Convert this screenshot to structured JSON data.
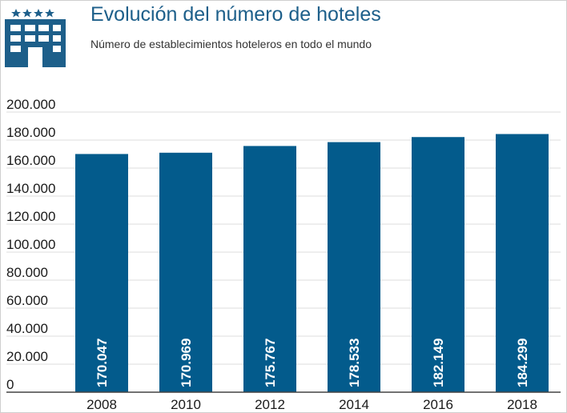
{
  "header": {
    "title": "Evolución del número de hoteles",
    "subtitle": "Número de establecimientos hoteleros en todo el mundo",
    "logo_icon": "hotel-building-icon",
    "logo_color": "#1d5f8a"
  },
  "chart_data": {
    "type": "bar",
    "title": "Evolución del número de hoteles",
    "subtitle": "Número de establecimientos hoteleros en todo el mundo",
    "categories": [
      "2008",
      "2010",
      "2012",
      "2014",
      "2016",
      "2018"
    ],
    "values": [
      170047,
      170969,
      175767,
      178533,
      182149,
      184299
    ],
    "value_labels": [
      "170.047",
      "170.969",
      "175.767",
      "178.533",
      "182.149",
      "184.299"
    ],
    "y_ticks": [
      "0",
      "20.000",
      "40.000",
      "60.000",
      "80.000",
      "100.000",
      "120.000",
      "140.000",
      "160.000",
      "180.000",
      "200.000"
    ],
    "ylim": [
      0,
      200000
    ],
    "xlabel": "",
    "ylabel": "",
    "grid": true,
    "bar_color": "#035b8c",
    "grid_color": "#dddddd"
  }
}
